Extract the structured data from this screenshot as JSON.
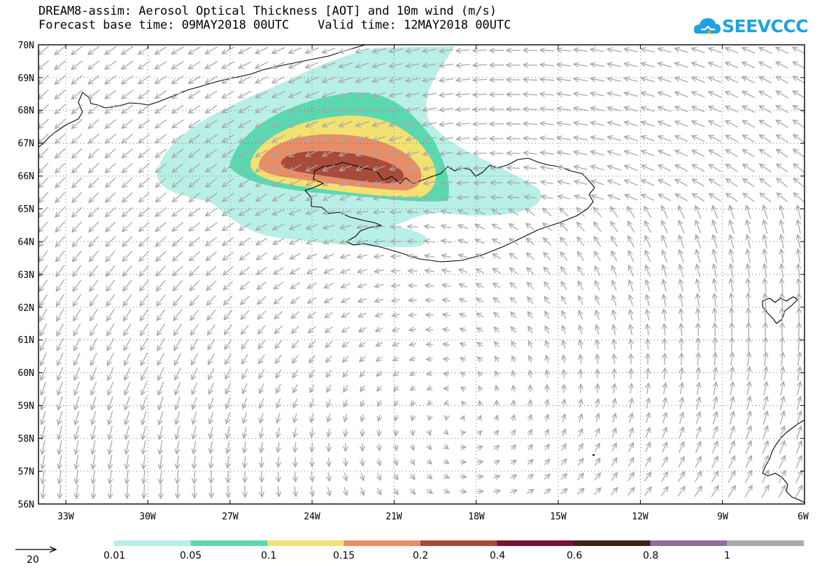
{
  "title": {
    "line1": "DREAM8-assim: Aerosol Optical Thickness [AOT] and 10m wind (m/s)",
    "line2": "Forecast base time: 09MAY2018 00UTC    Valid time: 12MAY2018 00UTC"
  },
  "logo": {
    "text": "SEEVCCC",
    "color": "#1fa2e0"
  },
  "axes": {
    "lat_labels": [
      "70N",
      "69N",
      "68N",
      "67N",
      "66N",
      "65N",
      "64N",
      "63N",
      "62N",
      "61N",
      "60N",
      "59N",
      "58N",
      "57N",
      "56N"
    ],
    "lon_labels": [
      "33W",
      "30W",
      "27W",
      "24W",
      "21W",
      "18W",
      "15W",
      "12W",
      "9W",
      "6W"
    ],
    "lat_range": [
      56,
      70
    ],
    "lon_range": [
      -34,
      -6
    ],
    "grid": true
  },
  "wind_reference": {
    "value": "20",
    "unit": "m/s"
  },
  "legend": {
    "labels": [
      "0.01",
      "0.05",
      "0.1",
      "0.15",
      "0.2",
      "0.4",
      "0.6",
      "0.8",
      "1"
    ],
    "colors": [
      "#b8efe6",
      "#5ad9b1",
      "#f3e171",
      "#e88d65",
      "#a94b3a",
      "#7a1230",
      "#3c2415",
      "#8f6da0",
      "#a9a9a9"
    ]
  },
  "chart_data": {
    "type": "heatmap",
    "variable": "Aerosol Optical Thickness [AOT]",
    "overlay": "10m wind (m/s)",
    "aot_levels": [
      0.01,
      0.05,
      0.1,
      0.15,
      0.2,
      0.4,
      0.6,
      0.8,
      1
    ],
    "plume_regions": [
      {
        "level": 0.01,
        "lon_min": -29.5,
        "lon_max": -15.5,
        "lat_min": 64.1,
        "lat_max": 69.9
      },
      {
        "level": 0.05,
        "lon_min": -27.5,
        "lon_max": -19.6,
        "lat_min": 65.0,
        "lat_max": 68.5
      },
      {
        "level": 0.1,
        "lon_min": -26.5,
        "lon_max": -20.0,
        "lat_min": 65.4,
        "lat_max": 67.7
      },
      {
        "level": 0.15,
        "lon_min": -25.5,
        "lon_max": -20.5,
        "lat_min": 65.7,
        "lat_max": 67.2
      },
      {
        "level": 0.2,
        "lon_min": -24.5,
        "lon_max": -20.9,
        "lat_min": 65.9,
        "lat_max": 66.8
      }
    ]
  }
}
